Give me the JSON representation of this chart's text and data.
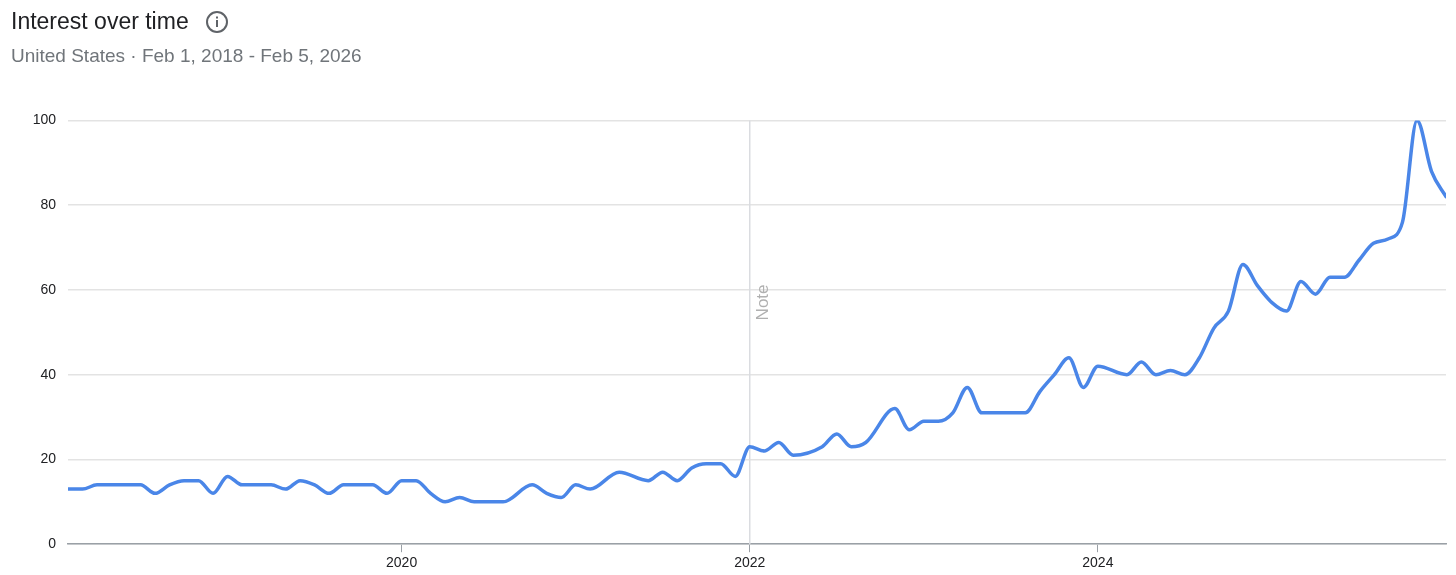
{
  "chart_data": {
    "type": "line",
    "title": "Interest over time",
    "subtitle": "United States · Feb 1, 2018 - Feb 5, 2026",
    "x": [
      "2018-02",
      "2018-03",
      "2018-04",
      "2018-07",
      "2018-08",
      "2018-09",
      "2018-10",
      "2018-11",
      "2018-12",
      "2019-01",
      "2019-02",
      "2019-04",
      "2019-05",
      "2019-06",
      "2019-07",
      "2019-08",
      "2019-09",
      "2019-11",
      "2019-12",
      "2020-01",
      "2020-02",
      "2020-03",
      "2020-04",
      "2020-05",
      "2020-06",
      "2020-08",
      "2020-10",
      "2020-11",
      "2020-12",
      "2021-01",
      "2021-02",
      "2021-04",
      "2021-06",
      "2021-07",
      "2021-08",
      "2021-09",
      "2021-10",
      "2021-11",
      "2021-12",
      "2022-01",
      "2022-02",
      "2022-03",
      "2022-04",
      "2022-06",
      "2022-07",
      "2022-08",
      "2022-09",
      "2022-11",
      "2022-12",
      "2023-01",
      "2023-02",
      "2023-03",
      "2023-04",
      "2023-05",
      "2023-08",
      "2023-09",
      "2023-10",
      "2023-11",
      "2023-12",
      "2024-01",
      "2024-03",
      "2024-04",
      "2024-05",
      "2024-06",
      "2024-07",
      "2024-08",
      "2024-09",
      "2024-10",
      "2024-11",
      "2024-12",
      "2025-01",
      "2025-02",
      "2025-03",
      "2025-04",
      "2025-05",
      "2025-06",
      "2025-07",
      "2025-08",
      "2025-09",
      "2025-10",
      "2025-11",
      "2025-12",
      "2026-01"
    ],
    "series": [
      {
        "color": "#4a86e8",
        "values": [
          13,
          13,
          14,
          14,
          12,
          14,
          15,
          15,
          12,
          16,
          14,
          14,
          13,
          15,
          14,
          12,
          14,
          14,
          12,
          15,
          15,
          12,
          10,
          11,
          10,
          10,
          14,
          12,
          11,
          14,
          13,
          17,
          15,
          17,
          15,
          18,
          19,
          19,
          16,
          23,
          22,
          24,
          21,
          23,
          26,
          23,
          24,
          32,
          27,
          29,
          29,
          31,
          37,
          31,
          31,
          36,
          40,
          44,
          37,
          42,
          40,
          43,
          40,
          41,
          40,
          44,
          51,
          55,
          66,
          61,
          57,
          55,
          62,
          59,
          63,
          63,
          67,
          71,
          72,
          76,
          100,
          88,
          82
        ]
      }
    ],
    "xlim": [
      "2018-02",
      "2026-01"
    ],
    "xticks": [
      "2020",
      "2022",
      "2024"
    ],
    "ylim": [
      0,
      100
    ],
    "yticks": [
      0,
      20,
      40,
      60,
      80,
      100
    ],
    "grid": "y",
    "legend": false,
    "marker": "none",
    "line_style": "solid",
    "ref_lines": [
      {
        "axis": "x",
        "value": "2022",
        "label": "Note",
        "color": "#dadce0"
      }
    ]
  }
}
